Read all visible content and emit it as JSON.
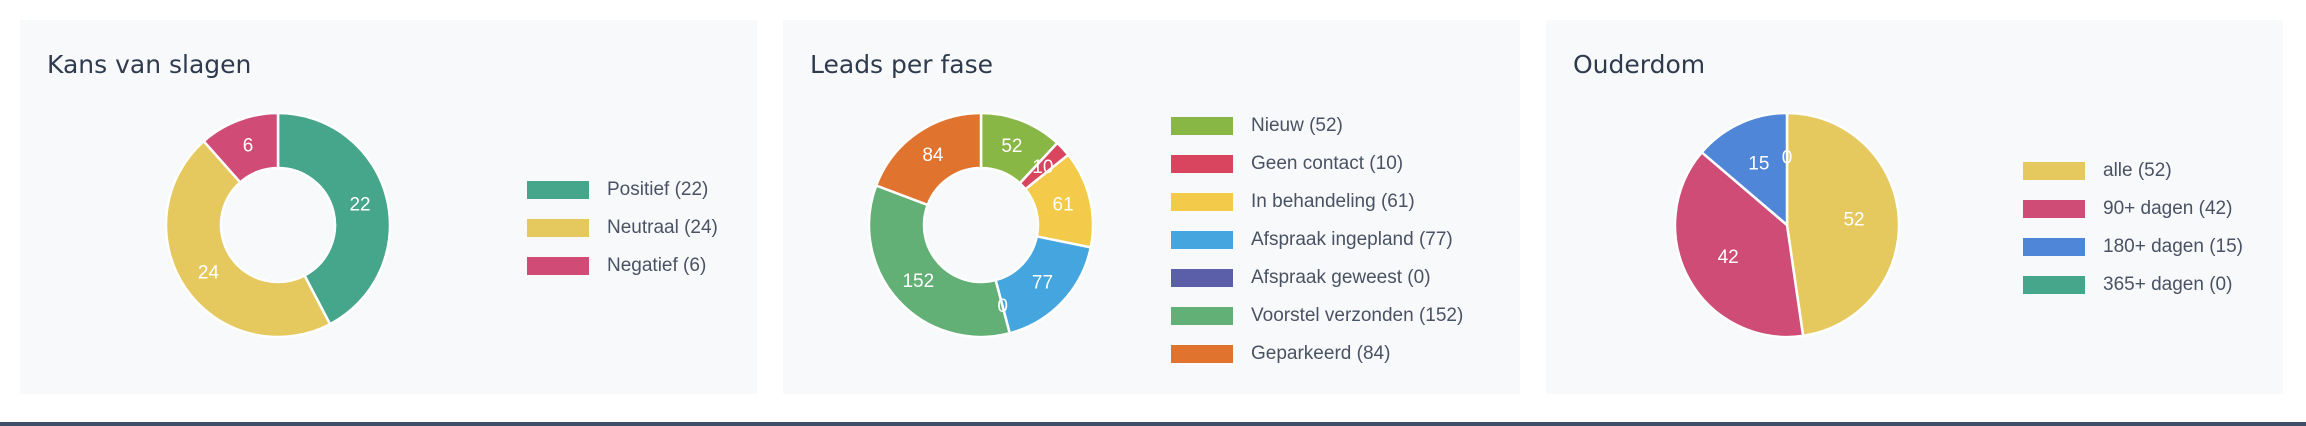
{
  "charts": [
    {
      "title": "Kans van slagen",
      "chart_data": {
        "type": "pie",
        "style": "donut",
        "series": [
          {
            "name": "Positief (22)",
            "value": 22,
            "label": "22",
            "color": "#46a68b"
          },
          {
            "name": "Neutraal (24)",
            "value": 24,
            "label": "24",
            "color": "#e6c95e"
          },
          {
            "name": "Negatief (6)",
            "value": 6,
            "label": "6",
            "color": "#d04b76"
          }
        ],
        "legend": "right"
      }
    },
    {
      "title": "Leads per fase",
      "chart_data": {
        "type": "pie",
        "style": "donut",
        "series": [
          {
            "name": "Nieuw (52)",
            "value": 52,
            "label": "52",
            "color": "#89b746"
          },
          {
            "name": "Geen contact (10)",
            "value": 10,
            "label": "10",
            "color": "#d9445e"
          },
          {
            "name": "In behandeling (61)",
            "value": 61,
            "label": "61",
            "color": "#f4ca4a"
          },
          {
            "name": "Afspraak ingepland (77)",
            "value": 77,
            "label": "77",
            "color": "#44a5df"
          },
          {
            "name": "Afspraak geweest (0)",
            "value": 0,
            "label": "0",
            "color": "#5b5ea8"
          },
          {
            "name": "Voorstel verzonden (152)",
            "value": 152,
            "label": "152",
            "color": "#63b077"
          },
          {
            "name": "Geparkeerd (84)",
            "value": 84,
            "label": "84",
            "color": "#e0732e"
          }
        ],
        "legend": "right"
      }
    },
    {
      "title": "Ouderdom",
      "chart_data": {
        "type": "pie",
        "style": "pie",
        "series": [
          {
            "name": "alle (52)",
            "value": 52,
            "label": "52",
            "color": "#e6c95e"
          },
          {
            "name": "90+ dagen (42)",
            "value": 42,
            "label": "42",
            "color": "#cf4c76"
          },
          {
            "name": "180+ dagen (15)",
            "value": 15,
            "label": "15",
            "color": "#4f86d7"
          },
          {
            "name": "365+ dagen (0)",
            "value": 0,
            "label": "0",
            "color": "#46a68b"
          }
        ],
        "legend": "right"
      }
    }
  ]
}
